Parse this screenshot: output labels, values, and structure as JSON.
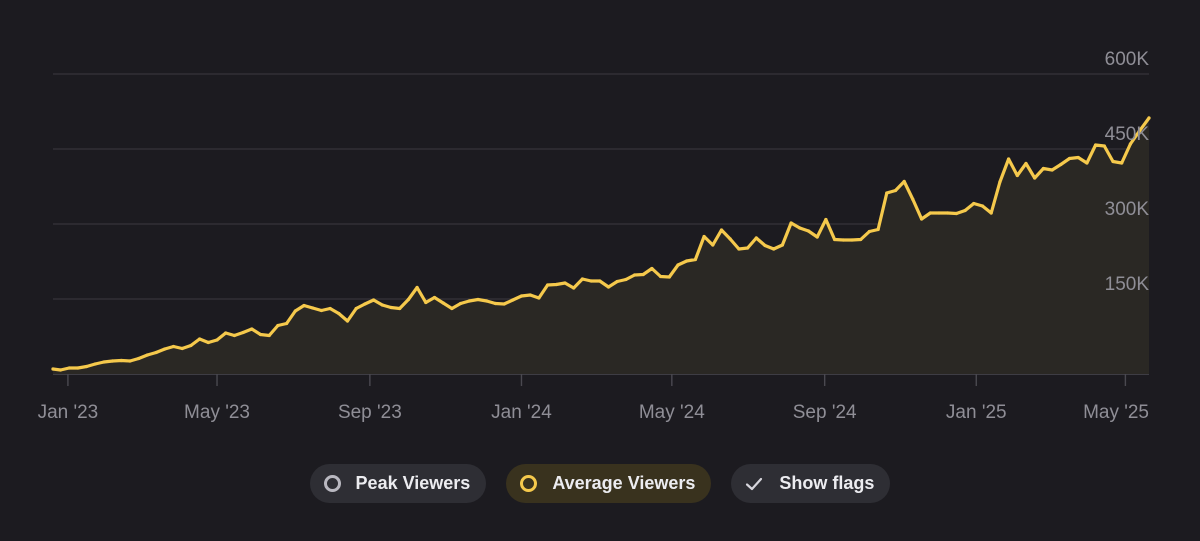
{
  "chart_data": {
    "type": "area",
    "title": "",
    "xlabel": "",
    "ylabel": "",
    "x_range": [
      "2022-12-20",
      "2025-05-20"
    ],
    "ylim": [
      0,
      600000
    ],
    "y_ticks": [
      {
        "value": 150000,
        "label": "150K"
      },
      {
        "value": 300000,
        "label": "300K"
      },
      {
        "value": 450000,
        "label": "450K"
      },
      {
        "value": 600000,
        "label": "600K"
      }
    ],
    "x_ticks": [
      {
        "date": "2023-01-01",
        "label": "Jan '23"
      },
      {
        "date": "2023-05-01",
        "label": "May '23"
      },
      {
        "date": "2023-09-01",
        "label": "Sep '23"
      },
      {
        "date": "2024-01-01",
        "label": "Jan '24"
      },
      {
        "date": "2024-05-01",
        "label": "May '24"
      },
      {
        "date": "2024-09-01",
        "label": "Sep '24"
      },
      {
        "date": "2025-01-01",
        "label": "Jan '25"
      },
      {
        "date": "2025-05-01",
        "label": "May '25"
      }
    ],
    "grid": true,
    "series": [
      {
        "name": "Average Viewers",
        "color": "#f5c94c",
        "visible": true,
        "points": [
          [
            "2022-12-20",
            10000
          ],
          [
            "2022-12-26",
            8000
          ],
          [
            "2023-01-02",
            12000
          ],
          [
            "2023-01-09",
            12000
          ],
          [
            "2023-01-16",
            15000
          ],
          [
            "2023-01-23",
            20000
          ],
          [
            "2023-01-30",
            24000
          ],
          [
            "2023-02-06",
            26000
          ],
          [
            "2023-02-13",
            27000
          ],
          [
            "2023-02-20",
            26000
          ],
          [
            "2023-02-27",
            31000
          ],
          [
            "2023-03-06",
            38000
          ],
          [
            "2023-03-13",
            43000
          ],
          [
            "2023-03-20",
            50000
          ],
          [
            "2023-03-27",
            55000
          ],
          [
            "2023-04-03",
            51000
          ],
          [
            "2023-04-10",
            57000
          ],
          [
            "2023-04-17",
            70000
          ],
          [
            "2023-04-24",
            63000
          ],
          [
            "2023-05-01",
            68000
          ],
          [
            "2023-05-08",
            82000
          ],
          [
            "2023-05-15",
            77000
          ],
          [
            "2023-05-22",
            83000
          ],
          [
            "2023-05-29",
            90000
          ],
          [
            "2023-06-05",
            79000
          ],
          [
            "2023-06-12",
            77000
          ],
          [
            "2023-06-19",
            97000
          ],
          [
            "2023-06-26",
            101000
          ],
          [
            "2023-07-03",
            126000
          ],
          [
            "2023-07-10",
            137000
          ],
          [
            "2023-07-17",
            132000
          ],
          [
            "2023-07-24",
            127000
          ],
          [
            "2023-07-31",
            131000
          ],
          [
            "2023-08-07",
            121000
          ],
          [
            "2023-08-14",
            106000
          ],
          [
            "2023-08-21",
            131000
          ],
          [
            "2023-08-28",
            140000
          ],
          [
            "2023-09-04",
            148000
          ],
          [
            "2023-09-11",
            138000
          ],
          [
            "2023-09-18",
            133000
          ],
          [
            "2023-09-25",
            131000
          ],
          [
            "2023-10-02",
            149000
          ],
          [
            "2023-10-09",
            173000
          ],
          [
            "2023-10-16",
            143000
          ],
          [
            "2023-10-23",
            153000
          ],
          [
            "2023-10-30",
            142000
          ],
          [
            "2023-11-06",
            131000
          ],
          [
            "2023-11-13",
            141000
          ],
          [
            "2023-11-20",
            146000
          ],
          [
            "2023-11-27",
            149000
          ],
          [
            "2023-12-04",
            146000
          ],
          [
            "2023-12-11",
            141000
          ],
          [
            "2023-12-18",
            140000
          ],
          [
            "2023-12-25",
            148000
          ],
          [
            "2024-01-01",
            156000
          ],
          [
            "2024-01-08",
            158000
          ],
          [
            "2024-01-15",
            152000
          ],
          [
            "2024-01-22",
            178000
          ],
          [
            "2024-01-29",
            179000
          ],
          [
            "2024-02-05",
            182000
          ],
          [
            "2024-02-12",
            172000
          ],
          [
            "2024-02-19",
            190000
          ],
          [
            "2024-02-26",
            186000
          ],
          [
            "2024-03-04",
            186000
          ],
          [
            "2024-03-11",
            174000
          ],
          [
            "2024-03-18",
            185000
          ],
          [
            "2024-03-25",
            189000
          ],
          [
            "2024-04-01",
            198000
          ],
          [
            "2024-04-08",
            199000
          ],
          [
            "2024-04-15",
            211000
          ],
          [
            "2024-04-22",
            195000
          ],
          [
            "2024-04-29",
            194000
          ],
          [
            "2024-05-06",
            218000
          ],
          [
            "2024-05-13",
            226000
          ],
          [
            "2024-05-20",
            229000
          ],
          [
            "2024-05-27",
            275000
          ],
          [
            "2024-06-03",
            258000
          ],
          [
            "2024-06-10",
            288000
          ],
          [
            "2024-06-17",
            270000
          ],
          [
            "2024-06-24",
            250000
          ],
          [
            "2024-07-01",
            252000
          ],
          [
            "2024-07-08",
            272000
          ],
          [
            "2024-07-15",
            257000
          ],
          [
            "2024-07-22",
            250000
          ],
          [
            "2024-07-29",
            258000
          ],
          [
            "2024-08-05",
            302000
          ],
          [
            "2024-08-12",
            292000
          ],
          [
            "2024-08-19",
            286000
          ],
          [
            "2024-08-26",
            274000
          ],
          [
            "2024-09-02",
            309000
          ],
          [
            "2024-09-09",
            269000
          ],
          [
            "2024-09-16",
            268000
          ],
          [
            "2024-09-23",
            268000
          ],
          [
            "2024-09-30",
            269000
          ],
          [
            "2024-10-07",
            285000
          ],
          [
            "2024-10-14",
            289000
          ],
          [
            "2024-10-21",
            362000
          ],
          [
            "2024-10-28",
            367000
          ],
          [
            "2024-11-04",
            385000
          ],
          [
            "2024-11-11",
            349000
          ],
          [
            "2024-11-18",
            310000
          ],
          [
            "2024-11-25",
            322000
          ],
          [
            "2024-12-02",
            322000
          ],
          [
            "2024-12-09",
            322000
          ],
          [
            "2024-12-16",
            321000
          ],
          [
            "2024-12-23",
            327000
          ],
          [
            "2024-12-30",
            341000
          ],
          [
            "2025-01-06",
            336000
          ],
          [
            "2025-01-13",
            322000
          ],
          [
            "2025-01-20",
            384000
          ],
          [
            "2025-01-27",
            430000
          ],
          [
            "2025-02-03",
            397000
          ],
          [
            "2025-02-10",
            421000
          ],
          [
            "2025-02-17",
            392000
          ],
          [
            "2025-02-24",
            411000
          ],
          [
            "2025-03-03",
            408000
          ],
          [
            "2025-03-10",
            419000
          ],
          [
            "2025-03-17",
            431000
          ],
          [
            "2025-03-24",
            433000
          ],
          [
            "2025-03-31",
            422000
          ],
          [
            "2025-04-07",
            458000
          ],
          [
            "2025-04-14",
            456000
          ],
          [
            "2025-04-21",
            425000
          ],
          [
            "2025-04-28",
            422000
          ],
          [
            "2025-05-05",
            460000
          ],
          [
            "2025-05-12",
            485000
          ],
          [
            "2025-05-20",
            512000
          ]
        ]
      },
      {
        "name": "Peak Viewers",
        "color": "#b9b8c0",
        "visible": false,
        "points": []
      }
    ]
  },
  "legend": {
    "peak_label": "Peak Viewers",
    "average_label": "Average Viewers",
    "flags_label": "Show flags"
  }
}
